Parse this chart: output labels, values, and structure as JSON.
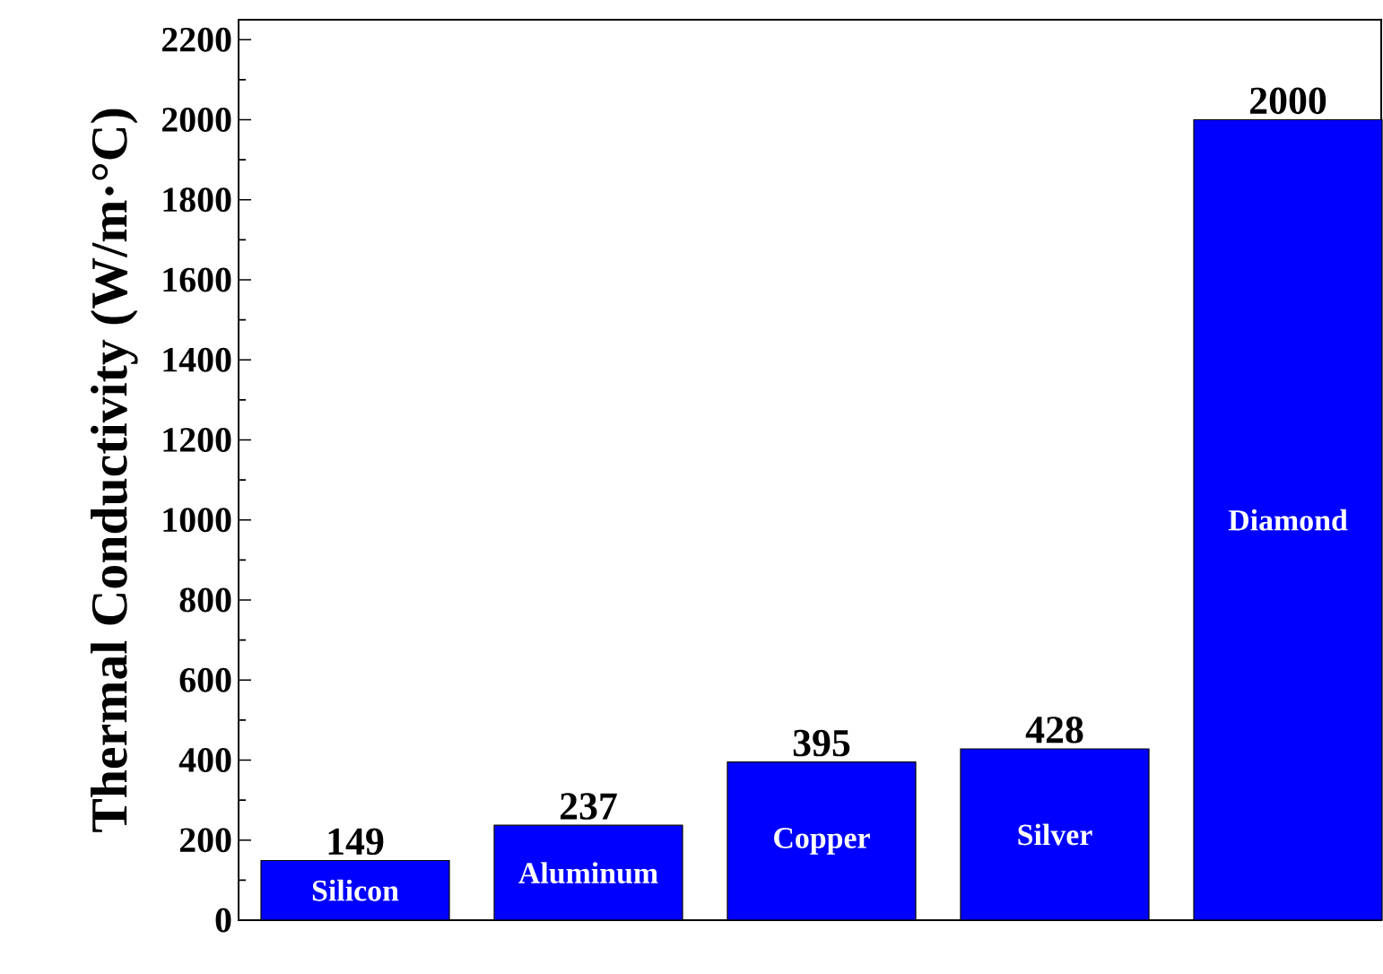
{
  "chart_data": {
    "type": "bar",
    "ylabel": "Thermal Conductivity (W/m·°C)",
    "categories": [
      "Silicon",
      "Aluminum",
      "Copper",
      "Silver",
      "Diamond"
    ],
    "values": [
      149,
      237,
      395,
      428,
      2000
    ],
    "color": "#0000ff",
    "ylim": [
      0,
      2250
    ],
    "yticks": [
      0,
      200,
      400,
      600,
      800,
      1000,
      1200,
      1400,
      1600,
      1800,
      2000,
      2200
    ],
    "data_labels": true,
    "tick_labels": "y",
    "grid": false
  }
}
